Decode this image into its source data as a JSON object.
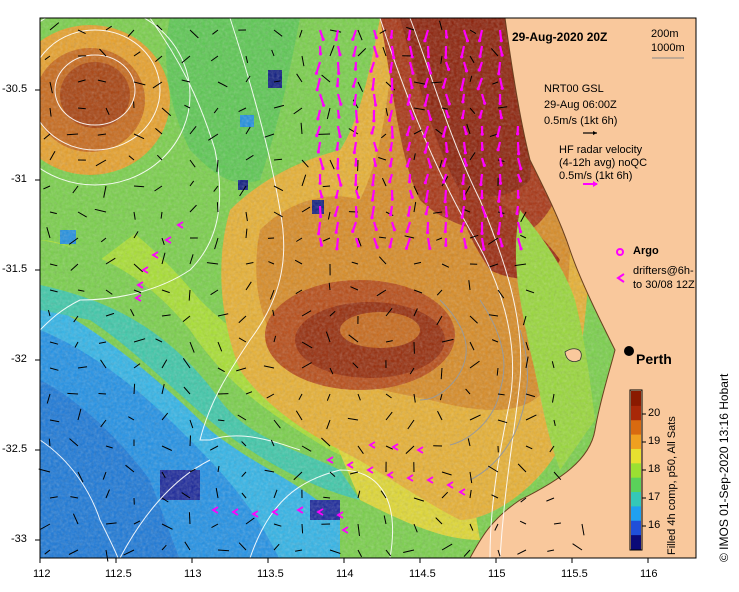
{
  "title": "29-Aug-2020 20Z",
  "scale_labels": [
    "200m",
    "1000m"
  ],
  "legend": {
    "nrt_lines": [
      "NRT00 GSL",
      "29-Aug 06:00Z",
      "0.5m/s (1kt 6h)"
    ],
    "hf_lines": [
      "HF radar velocity",
      "(4-12h avg) noQC",
      "0.5m/s (1kt 6h)"
    ],
    "argo": "Argo",
    "drifters_lines": [
      "drifters@6h-",
      "to 30/08 12Z"
    ]
  },
  "place": "Perth",
  "colorbar": {
    "label": "Filled 4h comp, p50, All Sats",
    "ticks": [
      "16",
      "17",
      "18",
      "19",
      "20"
    ]
  },
  "credit": "© IMOS 01-Sep-2020 13:16 Hobart",
  "axes": {
    "x_ticks": [
      "112",
      "112.5",
      "113",
      "113.5",
      "114",
      "114.5",
      "115",
      "115.5",
      "116"
    ],
    "y_ticks": [
      "-30.5",
      "-31",
      "-31.5",
      "-32",
      "-32.5",
      "-33"
    ]
  },
  "colors": {
    "land": "#f9c89c",
    "arrow_model": "#000000",
    "arrow_radar": "#ff00ff",
    "contour": "#ffffff",
    "perth_dot": "#000000"
  },
  "sst_scale": [
    "#0a0a78",
    "#1f4fd8",
    "#1fa0f0",
    "#34c8b8",
    "#5ad25a",
    "#9be032",
    "#e8e030",
    "#f0a020",
    "#d86a10",
    "#a82808",
    "#8a1a00"
  ]
}
